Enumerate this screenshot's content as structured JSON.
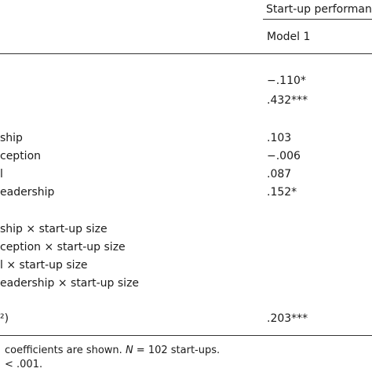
{
  "table": {
    "header": {
      "group": "Start-up performan",
      "model": "Model 1"
    },
    "rows": [
      {
        "value": "−.110*"
      },
      {
        "value": ".432***"
      },
      {
        "label": "ship",
        "value": ".103"
      },
      {
        "label": "ception",
        "value": "−.006"
      },
      {
        "label": "l",
        "value": ".087"
      },
      {
        "label": "eadership",
        "value": ".152*"
      },
      {
        "label": "ship × start-up size"
      },
      {
        "label": "ception × start-up size"
      },
      {
        "label": "l × start-up size"
      },
      {
        "label": "eadership × start-up size"
      },
      {
        "label": "²)",
        "value": ".203***"
      }
    ]
  },
  "notes": {
    "line1": {
      "before": "coefficients are shown. ",
      "italic": "N",
      "after": " = 102 start-ups."
    },
    "line2": "< .001."
  }
}
